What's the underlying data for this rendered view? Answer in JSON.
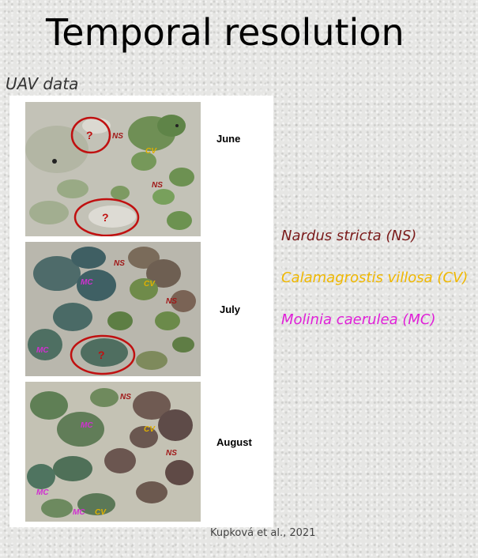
{
  "slide": {
    "title": "Temporal resolution",
    "subtitle": "UAV data",
    "citation": "Kupková et al., 2021"
  },
  "months": [
    {
      "name": "June"
    },
    {
      "name": "July"
    },
    {
      "name": "August"
    }
  ],
  "legend": [
    {
      "text": "Nardus stricta (NS)",
      "color": "#7a1a1a"
    },
    {
      "text": "Calamagrostis villosa (CV)",
      "color": "#f0b800"
    },
    {
      "text": "Molinia caerulea (MC)",
      "color": "#e020d8"
    }
  ],
  "labels": {
    "ns": "NS",
    "cv": "CV",
    "mc": "MC",
    "question": "?"
  },
  "colors": {
    "ns_label": "#a01818",
    "cv_label": "#e0b000",
    "mc_label": "#d030d0",
    "circle": "#c01010"
  }
}
